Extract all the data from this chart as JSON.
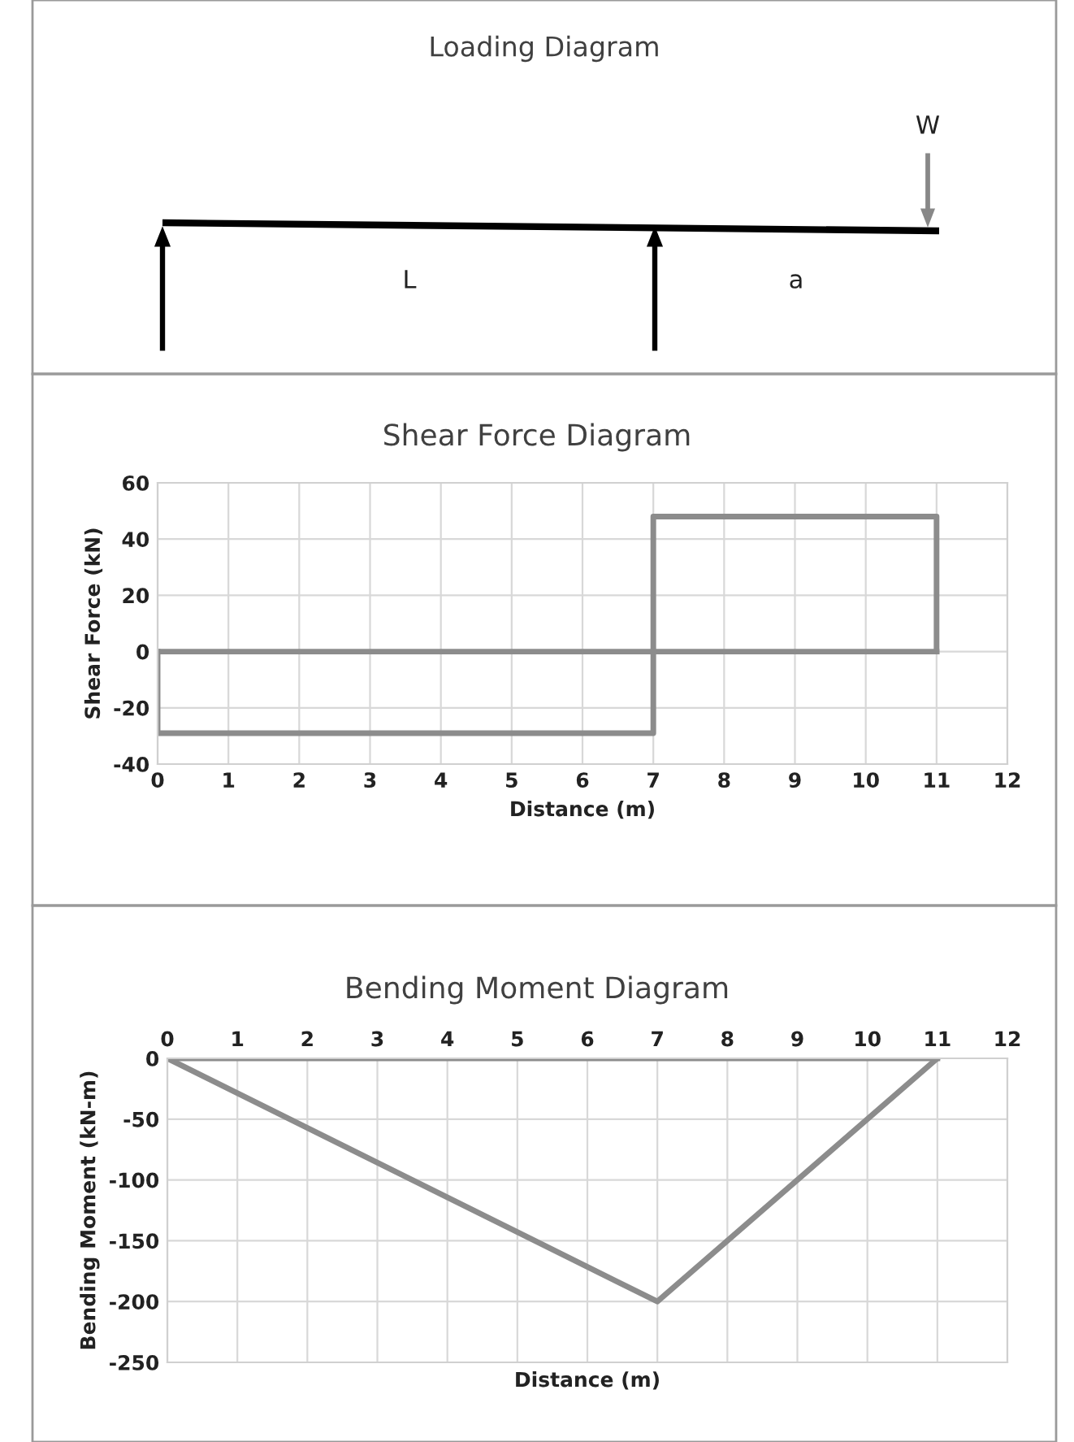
{
  "chart_data": [
    {
      "type": "other",
      "title": "Loading Diagram",
      "annotations": [
        "W",
        "L",
        "a"
      ]
    },
    {
      "type": "line",
      "title": "Shear Force Diagram",
      "xlabel": "Distance (m)",
      "ylabel": "Shear Force (kN)",
      "grid": true,
      "series": [
        {
          "color": "#8c8c8c",
          "x": [
            0,
            0,
            7,
            7,
            11,
            11
          ],
          "values": [
            0,
            -29,
            -29,
            48,
            48,
            0
          ]
        },
        {
          "color": "#8c8c8c",
          "x": [
            0,
            11
          ],
          "values": [
            0,
            0
          ]
        }
      ],
      "xlim": [
        0,
        12
      ],
      "xticks": [
        0,
        1,
        2,
        3,
        4,
        5,
        6,
        7,
        8,
        9,
        10,
        11,
        12
      ],
      "ylim": [
        -40,
        60
      ],
      "yticks": [
        -40,
        -20,
        0,
        20,
        40,
        60
      ]
    },
    {
      "type": "line",
      "title": "Bending Moment Diagram",
      "xlabel": "Distance (m)",
      "ylabel": "Bending Moment (kN-m)",
      "grid": true,
      "series": [
        {
          "color": "#8c8c8c",
          "x": [
            0,
            7,
            11
          ],
          "values": [
            0,
            -200,
            0
          ]
        },
        {
          "color": "#8c8c8c",
          "x": [
            0,
            11
          ],
          "values": [
            0,
            0
          ]
        }
      ],
      "xlim": [
        0,
        12
      ],
      "xticks": [
        0,
        1,
        2,
        3,
        4,
        5,
        6,
        7,
        8,
        9,
        10,
        11,
        12
      ],
      "ylim": [
        -250,
        0
      ],
      "yticks": [
        -250,
        -200,
        -150,
        -100,
        -50,
        0
      ]
    }
  ]
}
